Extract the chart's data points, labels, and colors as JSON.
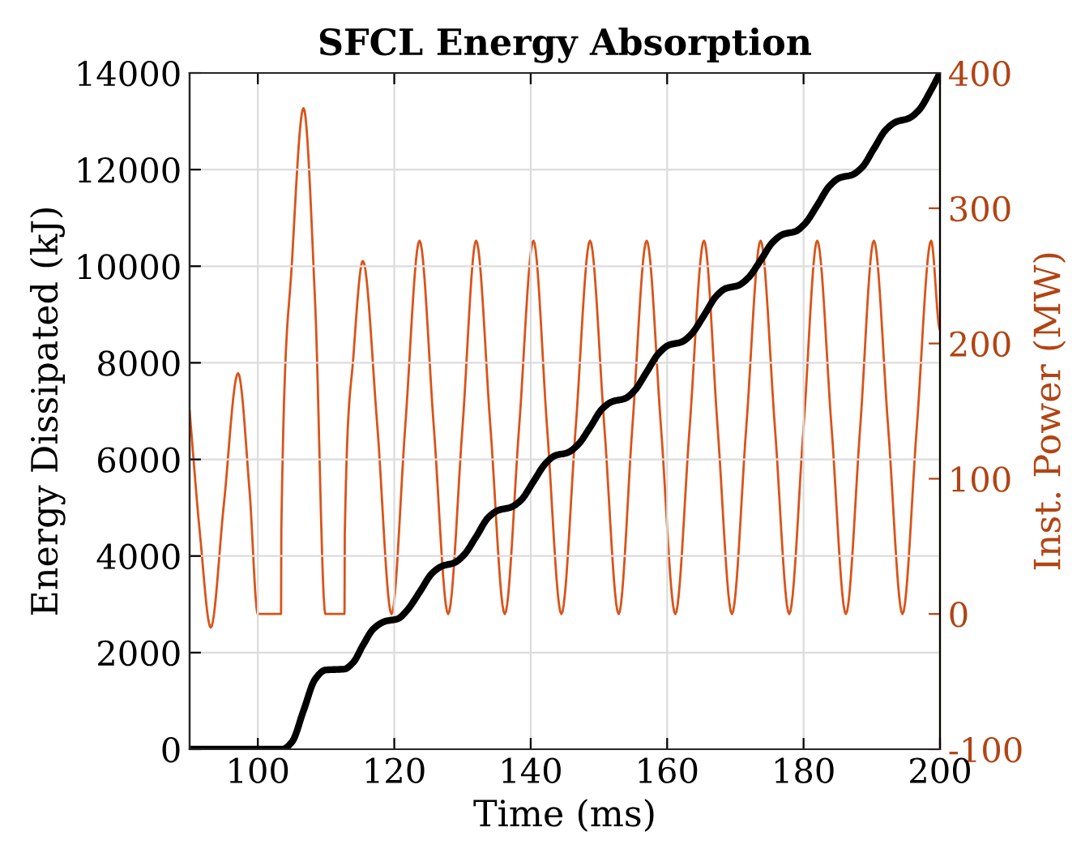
{
  "chart_data": {
    "type": "line",
    "title": "SFCL Energy Absorption",
    "xlabel": "Time (ms)",
    "ylabel": "Energy Dissipated (kJ)",
    "y2label": "Inst. Power (MW)",
    "xlim": [
      90,
      200
    ],
    "xticks": [
      100,
      120,
      140,
      160,
      180,
      200
    ],
    "ylim": [
      0,
      14000
    ],
    "yticks": [
      0,
      2000,
      4000,
      6000,
      8000,
      10000,
      12000,
      14000
    ],
    "y2lim": [
      -100,
      400
    ],
    "y2ticks": [
      -100,
      0,
      100,
      200,
      300,
      400
    ],
    "grid": true,
    "legend": false,
    "series": [
      {
        "axis": "y2",
        "color": "#d95319",
        "x": [
          90,
          91.5,
          93.1,
          95,
          97.1,
          98.8,
          100,
          103.4,
          103.45,
          105,
          106.7,
          108.4,
          109.9,
          112.7,
          112.75,
          114,
          115.4,
          117.5,
          119.6,
          121.6,
          123.7,
          125.8,
          127.9,
          130,
          132,
          134.1,
          136.2,
          138.3,
          140.4,
          142.4,
          144.5,
          146.6,
          148.7,
          150.8,
          152.9,
          154.9,
          157,
          159.1,
          161.2,
          163.3,
          165.4,
          167.4,
          169.5,
          171.6,
          173.7,
          175.8,
          177.9,
          180,
          182,
          184.1,
          186.2,
          188.3,
          190.3,
          192.4,
          194.5,
          196.6,
          198.7,
          200
        ],
        "values": [
          150,
          60,
          -10,
          80,
          178,
          90,
          0,
          0,
          65,
          260,
          374,
          230,
          0,
          0,
          60,
          190,
          261,
          140,
          0,
          138,
          276,
          138,
          0,
          138,
          276,
          138,
          0,
          138,
          276,
          138,
          0,
          138,
          276,
          138,
          0,
          138,
          276,
          138,
          0,
          138,
          276,
          138,
          0,
          138,
          276,
          138,
          0,
          138,
          276,
          138,
          0,
          138,
          276,
          138,
          0,
          138,
          276,
          210
        ]
      },
      {
        "axis": "y",
        "color": "#000000",
        "x": [
          90,
          103.6,
          105,
          106.7,
          108.4,
          109.9,
          112.7,
          114,
          115.4,
          117,
          118.7,
          120.5,
          121.9,
          123.7,
          125.6,
          127,
          128.8,
          130.2,
          132,
          133.8,
          135.3,
          137.1,
          138.6,
          140.4,
          142.2,
          143.6,
          145.4,
          146.9,
          148.7,
          150.5,
          152,
          153.8,
          155.2,
          157,
          158.8,
          160.3,
          162.1,
          163.6,
          165.4,
          167.2,
          168.6,
          170.4,
          171.9,
          173.7,
          175.5,
          177,
          178.8,
          180.2,
          182,
          183.8,
          185.3,
          187.1,
          188.6,
          190.3,
          192.1,
          193.6,
          195.4,
          196.9,
          198.7,
          200
        ],
        "values": [
          0,
          0,
          150,
          800,
          1450,
          1640,
          1660,
          1800,
          2150,
          2500,
          2650,
          2700,
          2880,
          3250,
          3650,
          3790,
          3860,
          4020,
          4400,
          4800,
          4950,
          5010,
          5160,
          5540,
          5920,
          6080,
          6140,
          6300,
          6660,
          7050,
          7200,
          7260,
          7420,
          7810,
          8200,
          8370,
          8430,
          8600,
          8980,
          9380,
          9540,
          9600,
          9760,
          10120,
          10500,
          10660,
          10720,
          10880,
          11260,
          11660,
          11830,
          11890,
          12050,
          12430,
          12830,
          12990,
          13060,
          13230,
          13650,
          14000
        ]
      }
    ]
  }
}
